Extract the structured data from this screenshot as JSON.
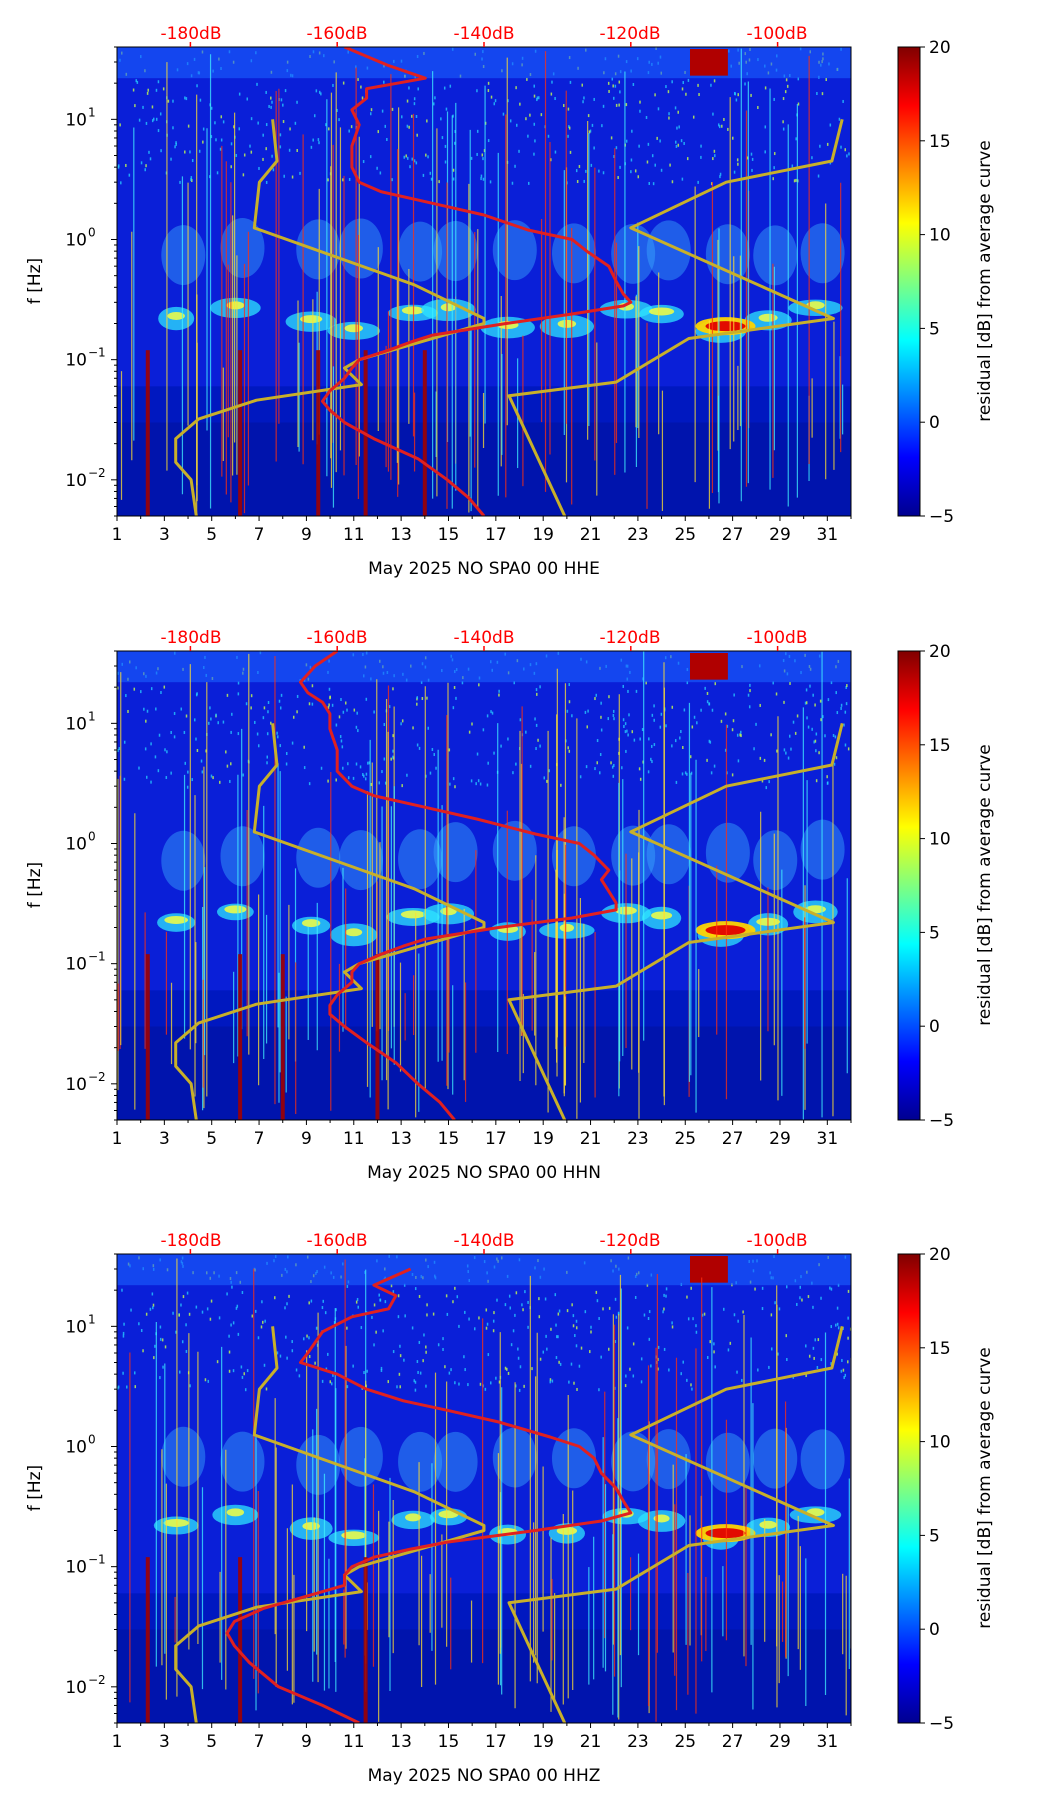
{
  "figure": {
    "background": "#ffffff",
    "nlnm_color": "#c8b02a",
    "mean_color": "#e02020",
    "top_label_color": "#ff0000"
  },
  "chart_data": [
    {
      "type": "heatmap",
      "channel": "HHE",
      "xlabel": "May 2025 NO SPA0 00 HHE",
      "ylabel": "f [Hz]",
      "xlim": [
        1,
        32
      ],
      "xticks": [
        "1",
        "3",
        "5",
        "7",
        "9",
        "11",
        "13",
        "15",
        "17",
        "19",
        "21",
        "23",
        "25",
        "27",
        "29",
        "31"
      ],
      "ylim_hz": [
        0.005,
        40
      ],
      "yticks": [
        {
          "label": "10",
          "exp": "−2",
          "value": 0.01
        },
        {
          "label": "10",
          "exp": "−1",
          "value": 0.1
        },
        {
          "label": "10",
          "exp": "0",
          "value": 1
        },
        {
          "label": "10",
          "exp": "1",
          "value": 10
        }
      ],
      "top_axis": {
        "labels": [
          "-180dB",
          "-160dB",
          "-140dB",
          "-120dB",
          "-100dB"
        ],
        "values_db": [
          -180,
          -160,
          -140,
          -120,
          -100
        ],
        "db_range": [
          -190,
          -90
        ]
      },
      "colorbar": {
        "label": "residual [dB] from average curve",
        "min": -5,
        "max": 20,
        "ticks": [
          "20",
          "15",
          "10",
          "5",
          "0",
          "−5"
        ]
      },
      "nlnm_db": [
        [
          10,
          -168.8
        ],
        [
          4.5,
          -168.2
        ],
        [
          3.0,
          -170.6
        ],
        [
          1.25,
          -171.3
        ],
        [
          0.42,
          -149.5
        ],
        [
          0.22,
          -140.0
        ],
        [
          0.2,
          -140.0
        ],
        [
          0.1,
          -157.0
        ],
        [
          0.085,
          -159.0
        ],
        [
          0.062,
          -156.7
        ],
        [
          0.046,
          -171.0
        ],
        [
          0.032,
          -178.9
        ],
        [
          0.022,
          -182.0
        ],
        [
          0.014,
          -182.0
        ],
        [
          0.01,
          -179.9
        ],
        [
          0.005,
          -179.2
        ]
      ],
      "nhnm_db": [
        [
          10,
          -91.2
        ],
        [
          4.5,
          -92.6
        ],
        [
          3.0,
          -107.0
        ],
        [
          1.25,
          -120.0
        ],
        [
          0.22,
          -92.4
        ],
        [
          0.15,
          -112.1
        ],
        [
          0.065,
          -122.0
        ],
        [
          0.05,
          -136.6
        ],
        [
          0.005,
          -129.0
        ]
      ],
      "mean_psd_db": [
        [
          40,
          -159
        ],
        [
          28,
          -153
        ],
        [
          22,
          -148
        ],
        [
          18,
          -156
        ],
        [
          15,
          -156
        ],
        [
          12,
          -158
        ],
        [
          9,
          -157
        ],
        [
          6,
          -158
        ],
        [
          4,
          -158
        ],
        [
          3,
          -157
        ],
        [
          2.5,
          -154
        ],
        [
          2.0,
          -147
        ],
        [
          1.6,
          -140
        ],
        [
          1.2,
          -134
        ],
        [
          1.0,
          -128
        ],
        [
          0.8,
          -126
        ],
        [
          0.6,
          -123
        ],
        [
          0.45,
          -122
        ],
        [
          0.35,
          -121
        ],
        [
          0.3,
          -120
        ],
        [
          0.28,
          -121
        ],
        [
          0.24,
          -128
        ],
        [
          0.2,
          -137
        ],
        [
          0.16,
          -147
        ],
        [
          0.14,
          -150
        ],
        [
          0.12,
          -153
        ],
        [
          0.1,
          -157
        ],
        [
          0.085,
          -158
        ],
        [
          0.07,
          -159
        ],
        [
          0.055,
          -161
        ],
        [
          0.045,
          -162
        ],
        [
          0.038,
          -161
        ],
        [
          0.03,
          -159
        ],
        [
          0.022,
          -155
        ],
        [
          0.015,
          -149
        ],
        [
          0.01,
          -145
        ],
        [
          0.007,
          -142
        ],
        [
          0.005,
          -140
        ]
      ],
      "persistent_spikes_day": [
        2.3,
        6.2,
        9.5,
        11.5,
        14.0
      ]
    },
    {
      "type": "heatmap",
      "channel": "HHN",
      "xlabel": "May 2025 NO SPA0 00 HHN",
      "ylabel": "f [Hz]",
      "xlim": [
        1,
        32
      ],
      "xticks": [
        "1",
        "3",
        "5",
        "7",
        "9",
        "11",
        "13",
        "15",
        "17",
        "19",
        "21",
        "23",
        "25",
        "27",
        "29",
        "31"
      ],
      "ylim_hz": [
        0.005,
        40
      ],
      "yticks": [
        {
          "label": "10",
          "exp": "−2",
          "value": 0.01
        },
        {
          "label": "10",
          "exp": "−1",
          "value": 0.1
        },
        {
          "label": "10",
          "exp": "0",
          "value": 1
        },
        {
          "label": "10",
          "exp": "1",
          "value": 10
        }
      ],
      "top_axis": {
        "labels": [
          "-180dB",
          "-160dB",
          "-140dB",
          "-120dB",
          "-100dB"
        ],
        "values_db": [
          -180,
          -160,
          -140,
          -120,
          -100
        ],
        "db_range": [
          -190,
          -90
        ]
      },
      "colorbar": {
        "label": "residual [dB] from average curve",
        "min": -5,
        "max": 20,
        "ticks": [
          "20",
          "15",
          "10",
          "5",
          "0",
          "−5"
        ]
      },
      "nlnm_db": [
        [
          10,
          -168.8
        ],
        [
          4.5,
          -168.2
        ],
        [
          3.0,
          -170.6
        ],
        [
          1.25,
          -171.3
        ],
        [
          0.42,
          -149.5
        ],
        [
          0.22,
          -140.0
        ],
        [
          0.2,
          -140.0
        ],
        [
          0.1,
          -157.0
        ],
        [
          0.085,
          -159.0
        ],
        [
          0.062,
          -156.7
        ],
        [
          0.046,
          -171.0
        ],
        [
          0.032,
          -178.9
        ],
        [
          0.022,
          -182.0
        ],
        [
          0.014,
          -182.0
        ],
        [
          0.01,
          -179.9
        ],
        [
          0.005,
          -179.2
        ]
      ],
      "nhnm_db": [
        [
          10,
          -91.2
        ],
        [
          4.5,
          -92.6
        ],
        [
          3.0,
          -107.0
        ],
        [
          1.25,
          -120.0
        ],
        [
          0.22,
          -92.4
        ],
        [
          0.15,
          -112.1
        ],
        [
          0.065,
          -122.0
        ],
        [
          0.05,
          -136.6
        ],
        [
          0.005,
          -129.0
        ]
      ],
      "mean_psd_db": [
        [
          40,
          -160
        ],
        [
          30,
          -163
        ],
        [
          22,
          -165
        ],
        [
          18,
          -164
        ],
        [
          15,
          -162
        ],
        [
          12,
          -161
        ],
        [
          9,
          -161
        ],
        [
          6,
          -160
        ],
        [
          4,
          -160
        ],
        [
          3,
          -158
        ],
        [
          2.5,
          -155
        ],
        [
          2.0,
          -148
        ],
        [
          1.6,
          -141
        ],
        [
          1.2,
          -133
        ],
        [
          1.0,
          -127
        ],
        [
          0.8,
          -125
        ],
        [
          0.6,
          -123
        ],
        [
          0.5,
          -124
        ],
        [
          0.4,
          -123
        ],
        [
          0.32,
          -122
        ],
        [
          0.28,
          -122
        ],
        [
          0.24,
          -128
        ],
        [
          0.2,
          -138
        ],
        [
          0.16,
          -148
        ],
        [
          0.14,
          -151
        ],
        [
          0.12,
          -154
        ],
        [
          0.1,
          -157
        ],
        [
          0.085,
          -158
        ],
        [
          0.07,
          -158
        ],
        [
          0.055,
          -160
        ],
        [
          0.045,
          -161
        ],
        [
          0.038,
          -161
        ],
        [
          0.03,
          -159
        ],
        [
          0.022,
          -156
        ],
        [
          0.015,
          -152
        ],
        [
          0.01,
          -149
        ],
        [
          0.007,
          -146
        ],
        [
          0.005,
          -144
        ]
      ],
      "persistent_spikes_day": [
        2.3,
        6.2,
        8.0,
        12.0
      ]
    },
    {
      "type": "heatmap",
      "channel": "HHZ",
      "xlabel": "May 2025 NO SPA0 00 HHZ",
      "ylabel": "f [Hz]",
      "xlim": [
        1,
        32
      ],
      "xticks": [
        "1",
        "3",
        "5",
        "7",
        "9",
        "11",
        "13",
        "15",
        "17",
        "19",
        "21",
        "23",
        "25",
        "27",
        "29",
        "31"
      ],
      "ylim_hz": [
        0.005,
        40
      ],
      "yticks": [
        {
          "label": "10",
          "exp": "−2",
          "value": 0.01
        },
        {
          "label": "10",
          "exp": "−1",
          "value": 0.1
        },
        {
          "label": "10",
          "exp": "0",
          "value": 1
        },
        {
          "label": "10",
          "exp": "1",
          "value": 10
        }
      ],
      "top_axis": {
        "labels": [
          "-180dB",
          "-160dB",
          "-140dB",
          "-120dB",
          "-100dB"
        ],
        "values_db": [
          -180,
          -160,
          -140,
          -120,
          -100
        ],
        "db_range": [
          -190,
          -90
        ]
      },
      "colorbar": {
        "label": "residual [dB] from average curve",
        "min": -5,
        "max": 20,
        "ticks": [
          "20",
          "15",
          "10",
          "5",
          "0",
          "−5"
        ]
      },
      "nlnm_db": [
        [
          10,
          -168.8
        ],
        [
          4.5,
          -168.2
        ],
        [
          3.0,
          -170.6
        ],
        [
          1.25,
          -171.3
        ],
        [
          0.42,
          -149.5
        ],
        [
          0.22,
          -140.0
        ],
        [
          0.2,
          -140.0
        ],
        [
          0.1,
          -157.0
        ],
        [
          0.085,
          -159.0
        ],
        [
          0.062,
          -156.7
        ],
        [
          0.046,
          -171.0
        ],
        [
          0.032,
          -178.9
        ],
        [
          0.022,
          -182.0
        ],
        [
          0.014,
          -182.0
        ],
        [
          0.01,
          -179.9
        ],
        [
          0.005,
          -179.2
        ]
      ],
      "nhnm_db": [
        [
          10,
          -91.2
        ],
        [
          4.5,
          -92.6
        ],
        [
          3.0,
          -107.0
        ],
        [
          1.25,
          -120.0
        ],
        [
          0.22,
          -92.4
        ],
        [
          0.15,
          -112.1
        ],
        [
          0.065,
          -122.0
        ],
        [
          0.05,
          -136.6
        ],
        [
          0.005,
          -129.0
        ]
      ],
      "mean_psd_db": [
        [
          30,
          -150
        ],
        [
          22,
          -155
        ],
        [
          18,
          -152
        ],
        [
          14,
          -153
        ],
        [
          12,
          -158
        ],
        [
          9,
          -162
        ],
        [
          6,
          -164
        ],
        [
          5,
          -165
        ],
        [
          4,
          -160
        ],
        [
          3,
          -156
        ],
        [
          2.4,
          -151
        ],
        [
          2.0,
          -145
        ],
        [
          1.6,
          -138
        ],
        [
          1.2,
          -131
        ],
        [
          1.0,
          -127
        ],
        [
          0.8,
          -125
        ],
        [
          0.6,
          -124
        ],
        [
          0.45,
          -122
        ],
        [
          0.35,
          -121
        ],
        [
          0.28,
          -120
        ],
        [
          0.24,
          -124
        ],
        [
          0.2,
          -133
        ],
        [
          0.16,
          -145
        ],
        [
          0.14,
          -150
        ],
        [
          0.12,
          -155
        ],
        [
          0.1,
          -158
        ],
        [
          0.085,
          -159
        ],
        [
          0.07,
          -159
        ],
        [
          0.055,
          -165
        ],
        [
          0.045,
          -170
        ],
        [
          0.035,
          -174
        ],
        [
          0.028,
          -175
        ],
        [
          0.022,
          -174
        ],
        [
          0.016,
          -172
        ],
        [
          0.01,
          -168
        ],
        [
          0.007,
          -162
        ],
        [
          0.005,
          -157
        ]
      ],
      "persistent_spikes_day": [
        2.3,
        6.2,
        11.5
      ]
    }
  ]
}
